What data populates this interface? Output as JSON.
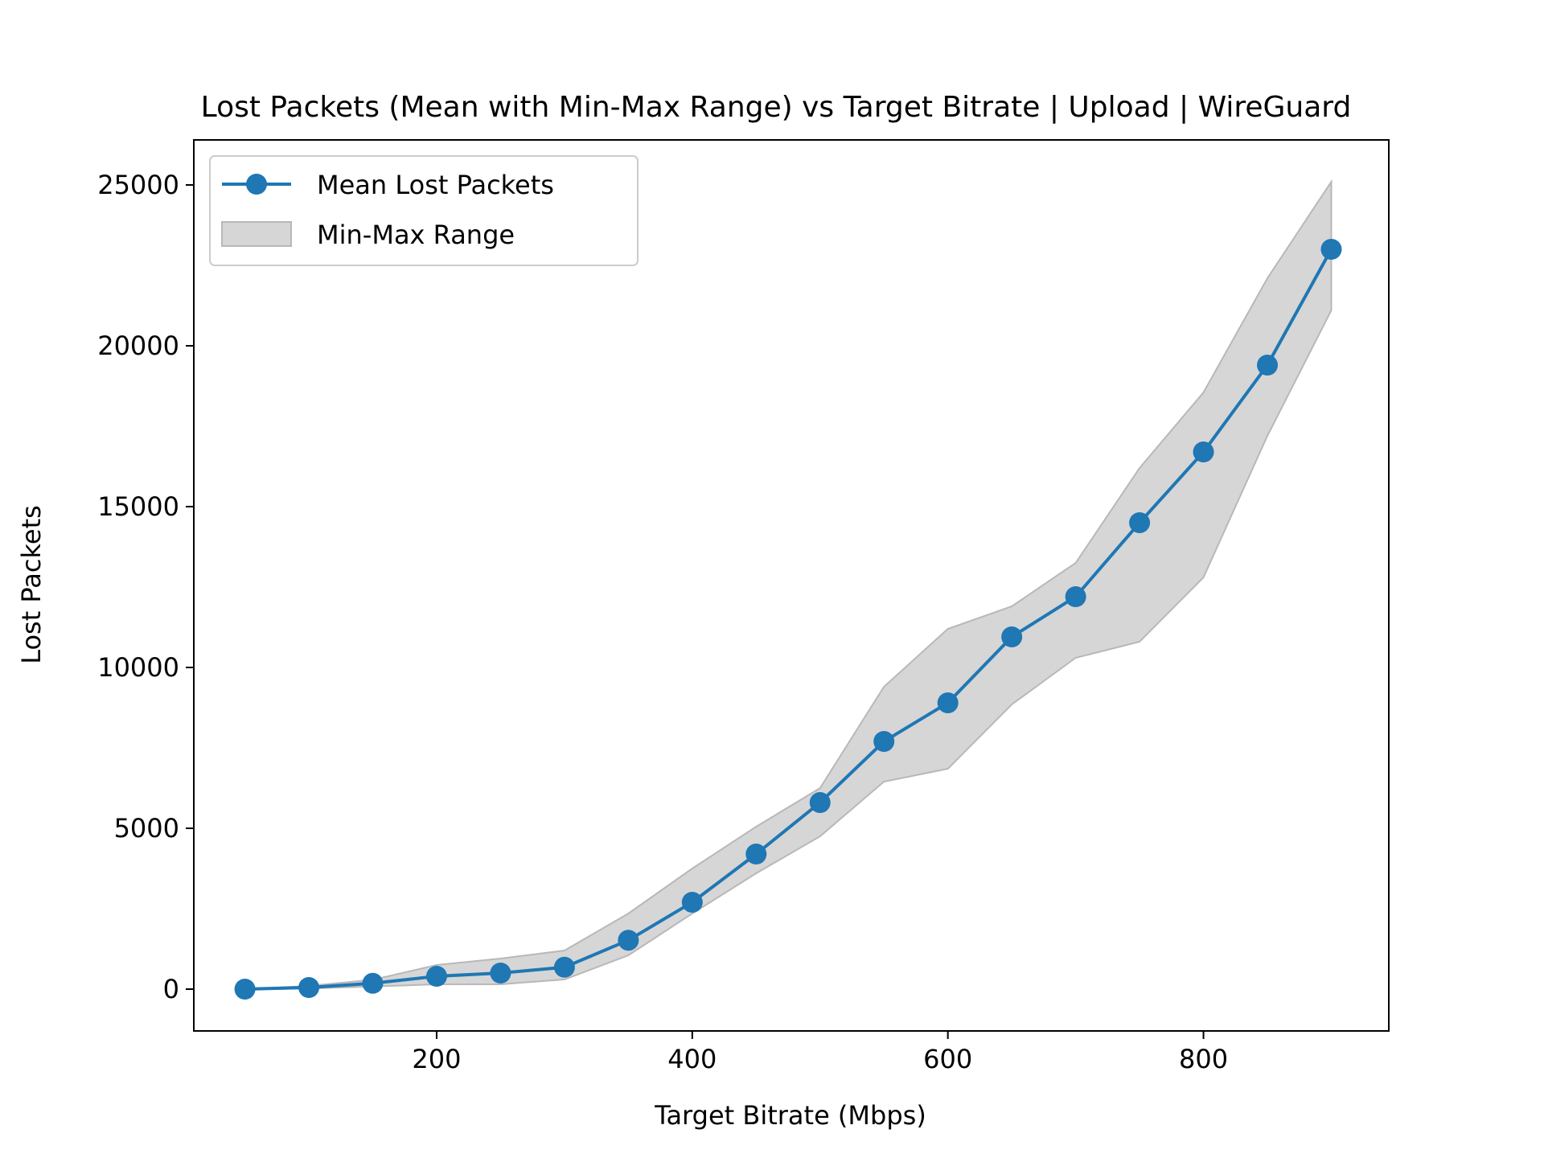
{
  "chart_data": {
    "type": "line",
    "title": "Lost Packets (Mean with Min-Max Range) vs Target Bitrate | Upload | WireGuard",
    "xlabel": "Target Bitrate (Mbps)",
    "ylabel": "Lost Packets",
    "xlim": [
      10,
      945
    ],
    "ylim": [
      -1300,
      26400
    ],
    "x_ticks": [
      200,
      400,
      600,
      800
    ],
    "y_ticks": [
      0,
      5000,
      10000,
      15000,
      20000,
      25000
    ],
    "grid": false,
    "legend_position": "upper-left",
    "x": [
      50,
      100,
      150,
      200,
      250,
      300,
      350,
      400,
      450,
      500,
      550,
      600,
      650,
      700,
      750,
      800,
      850,
      900
    ],
    "series": [
      {
        "name": "Mean Lost Packets",
        "kind": "line-marker",
        "color": "#1f77b4",
        "values": [
          0,
          50,
          180,
          400,
          500,
          680,
          1520,
          2700,
          4200,
          5800,
          7700,
          8900,
          10950,
          12200,
          14500,
          16700,
          19400,
          23000
        ]
      },
      {
        "name": "Min-Max Range",
        "kind": "band",
        "color": "#c8c8c8",
        "min": [
          0,
          20,
          80,
          150,
          150,
          300,
          1050,
          2350,
          3600,
          4750,
          6450,
          6850,
          8850,
          10300,
          10800,
          12800,
          17200,
          21100
        ],
        "max": [
          0,
          100,
          290,
          750,
          950,
          1200,
          2350,
          3750,
          5050,
          6250,
          9400,
          11200,
          11900,
          13250,
          16200,
          18550,
          22100,
          25100
        ]
      }
    ]
  }
}
